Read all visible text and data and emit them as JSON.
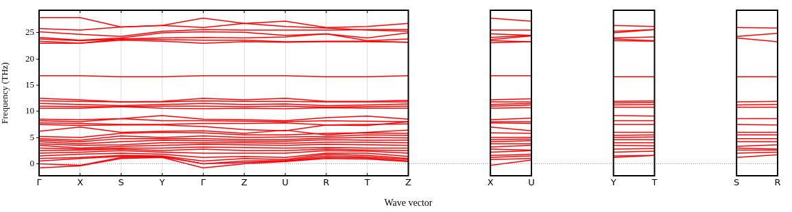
{
  "chart_data": {
    "type": "line",
    "ylabel": "Frequency (THz)",
    "xlabel": "Wave vector",
    "color": "#ff0000",
    "marker": "none",
    "grid": "x",
    "categories": [
      "Γ",
      "X",
      "S",
      "Y",
      "Γ",
      "Z",
      "U",
      "R",
      "T",
      "Z",
      null,
      "X",
      "U",
      null,
      "Y",
      "T",
      null,
      "S",
      "R"
    ],
    "ylim": [
      -2.3,
      29.3
    ],
    "yticks": [
      0,
      5,
      10,
      15,
      20,
      25
    ],
    "ref_lines": [
      {
        "axis": "y",
        "value": 0,
        "color": "#7777ff",
        "line_style": "dotted"
      }
    ],
    "series": [
      {
        "values": [
          27.9,
          27.9,
          26.1,
          26.4,
          27.8,
          26.8,
          27.2,
          26.0,
          26.2,
          26.8,
          null,
          null,
          null,
          null,
          null,
          null,
          null,
          null,
          null
        ]
      },
      {
        "values": [
          25.8,
          25.5,
          26.1,
          26.4,
          26.0,
          26.8,
          26.2,
          25.9,
          25.5,
          25.3,
          null,
          null,
          null,
          null,
          null,
          null,
          null,
          null,
          null
        ]
      },
      {
        "values": [
          25.2,
          24.7,
          24.3,
          25.3,
          25.6,
          25.5,
          25.5,
          25.5,
          25.6,
          25.6,
          null,
          null,
          null,
          null,
          null,
          null,
          null,
          null,
          null
        ]
      },
      {
        "values": [
          24.1,
          23.6,
          24.0,
          25.0,
          25.2,
          25.1,
          24.5,
          24.8,
          24.0,
          25.0,
          null,
          null,
          null,
          null,
          null,
          null,
          null,
          null,
          null
        ]
      },
      {
        "values": [
          23.8,
          23.5,
          23.8,
          24.0,
          24.1,
          24.0,
          24.2,
          24.8,
          23.5,
          23.8,
          null,
          null,
          null,
          null,
          null,
          null,
          null,
          null,
          null
        ]
      },
      {
        "values": [
          23.4,
          23.0,
          23.8,
          23.7,
          23.6,
          23.6,
          23.3,
          23.4,
          23.4,
          23.2,
          null,
          null,
          null,
          null,
          null,
          null,
          null,
          null,
          null
        ]
      },
      {
        "values": [
          23.0,
          23.0,
          23.6,
          23.4,
          23.0,
          23.3,
          23.2,
          23.3,
          23.3,
          23.2,
          null,
          null,
          null,
          null,
          null,
          null,
          null,
          null,
          null
        ]
      },
      {
        "values": [
          16.8,
          16.8,
          16.6,
          16.6,
          16.8,
          16.8,
          16.8,
          16.6,
          16.6,
          16.8,
          null,
          null,
          null,
          null,
          null,
          null,
          null,
          null,
          null
        ]
      },
      {
        "values": [
          12.5,
          12.2,
          11.8,
          11.9,
          12.5,
          12.2,
          12.5,
          11.9,
          11.9,
          12.1,
          null,
          null,
          null,
          null,
          null,
          null,
          null,
          null,
          null
        ]
      },
      {
        "values": [
          12.0,
          11.9,
          11.8,
          11.8,
          12.0,
          11.9,
          11.9,
          11.8,
          11.8,
          11.8,
          null,
          null,
          null,
          null,
          null,
          null,
          null,
          null,
          null
        ]
      },
      {
        "values": [
          11.5,
          11.3,
          11.1,
          11.3,
          11.5,
          11.3,
          11.4,
          11.1,
          11.2,
          11.4,
          null,
          null,
          null,
          null,
          null,
          null,
          null,
          null,
          null
        ]
      },
      {
        "values": [
          11.0,
          10.9,
          10.9,
          11.0,
          11.0,
          10.9,
          11.0,
          10.8,
          10.9,
          11.0,
          null,
          null,
          null,
          null,
          null,
          null,
          null,
          null,
          null
        ]
      },
      {
        "values": [
          10.6,
          10.6,
          10.9,
          10.6,
          10.5,
          10.6,
          10.5,
          10.7,
          10.6,
          10.6,
          null,
          null,
          null,
          null,
          null,
          null,
          null,
          null,
          null
        ]
      },
      {
        "values": [
          8.5,
          8.4,
          8.6,
          9.2,
          8.5,
          8.4,
          8.2,
          8.8,
          9.1,
          8.5,
          null,
          null,
          null,
          null,
          null,
          null,
          null,
          null,
          null
        ]
      },
      {
        "values": [
          8.2,
          8.0,
          8.6,
          8.2,
          8.2,
          8.1,
          8.0,
          8.2,
          8.1,
          8.0,
          null,
          null,
          null,
          null,
          null,
          null,
          null,
          null,
          null
        ]
      },
      {
        "values": [
          7.8,
          7.7,
          7.5,
          7.5,
          7.7,
          7.7,
          7.8,
          7.4,
          7.5,
          7.6,
          null,
          null,
          null,
          null,
          null,
          null,
          null,
          null,
          null
        ]
      },
      {
        "values": [
          7.5,
          7.3,
          7.4,
          7.4,
          7.1,
          6.5,
          6.3,
          7.4,
          7.3,
          8.0,
          null,
          null,
          null,
          null,
          null,
          null,
          null,
          null,
          null
        ]
      },
      {
        "values": [
          6.2,
          7.0,
          6.0,
          6.2,
          6.3,
          5.8,
          6.4,
          5.5,
          6.0,
          6.4,
          null,
          null,
          null,
          null,
          null,
          null,
          null,
          null,
          null
        ]
      },
      {
        "values": [
          5.2,
          5.0,
          5.8,
          6.0,
          5.9,
          5.5,
          5.5,
          5.8,
          5.9,
          5.8,
          null,
          null,
          null,
          null,
          null,
          null,
          null,
          null,
          null
        ]
      },
      {
        "values": [
          4.8,
          4.5,
          5.3,
          5.0,
          5.3,
          5.0,
          5.1,
          5.2,
          5.5,
          5.4,
          null,
          null,
          null,
          null,
          null,
          null,
          null,
          null,
          null
        ]
      },
      {
        "values": [
          4.5,
          4.2,
          4.8,
          4.8,
          4.8,
          4.6,
          4.6,
          4.9,
          5.0,
          4.9,
          null,
          null,
          null,
          null,
          null,
          null,
          null,
          null,
          null
        ]
      },
      {
        "values": [
          4.2,
          3.8,
          4.2,
          4.5,
          4.4,
          4.3,
          4.3,
          4.6,
          4.5,
          4.5,
          null,
          null,
          null,
          null,
          null,
          null,
          null,
          null,
          null
        ]
      },
      {
        "values": [
          3.8,
          3.5,
          3.6,
          4.0,
          4.0,
          4.0,
          3.9,
          4.1,
          4.1,
          4.0,
          null,
          null,
          null,
          null,
          null,
          null,
          null,
          null,
          null
        ]
      },
      {
        "values": [
          3.5,
          3.0,
          3.3,
          3.5,
          3.7,
          3.6,
          3.5,
          3.7,
          3.6,
          3.5,
          null,
          null,
          null,
          null,
          null,
          null,
          null,
          null,
          null
        ]
      },
      {
        "values": [
          3.0,
          2.8,
          3.0,
          3.0,
          3.2,
          3.1,
          3.0,
          3.1,
          3.0,
          3.0,
          null,
          null,
          null,
          null,
          null,
          null,
          null,
          null,
          null
        ]
      },
      {
        "values": [
          2.5,
          2.6,
          2.8,
          2.5,
          2.8,
          2.5,
          2.5,
          2.8,
          2.6,
          2.5,
          null,
          null,
          null,
          null,
          null,
          null,
          null,
          null,
          null
        ]
      },
      {
        "values": [
          2.0,
          2.2,
          2.5,
          2.2,
          2.0,
          2.0,
          2.0,
          2.5,
          2.4,
          2.0,
          null,
          null,
          null,
          null,
          null,
          null,
          null,
          null,
          null
        ]
      },
      {
        "values": [
          1.5,
          1.8,
          2.0,
          1.8,
          1.2,
          1.4,
          1.2,
          2.0,
          2.0,
          1.4,
          null,
          null,
          null,
          null,
          null,
          null,
          null,
          null,
          null
        ]
      },
      {
        "values": [
          1.0,
          1.2,
          1.6,
          1.5,
          0.5,
          1.0,
          0.8,
          1.8,
          1.6,
          1.0,
          null,
          null,
          null,
          null,
          null,
          null,
          null,
          null,
          null
        ]
      },
      {
        "values": [
          0.5,
          1.0,
          1.4,
          1.4,
          0,
          0.5,
          0.6,
          1.5,
          1.3,
          0.8,
          null,
          null,
          null,
          null,
          null,
          null,
          null,
          null,
          null
        ]
      },
      {
        "values": [
          0,
          -0.3,
          1.2,
          1.3,
          0,
          0.2,
          0.5,
          1.2,
          1.1,
          0.5,
          null,
          null,
          null,
          null,
          null,
          null,
          null,
          null,
          null
        ]
      },
      {
        "values": [
          -0.8,
          -0.4,
          1.0,
          1.2,
          -0.8,
          0,
          0.4,
          1.0,
          0.9,
          0.4,
          null,
          null,
          null,
          null,
          null,
          null,
          null,
          null,
          null
        ]
      },
      {
        "values": [
          null,
          null,
          null,
          null,
          null,
          null,
          null,
          null,
          null,
          null,
          null,
          27.8,
          27.2,
          null,
          null,
          null,
          null,
          null,
          null
        ]
      },
      {
        "values": [
          null,
          null,
          null,
          null,
          null,
          null,
          null,
          null,
          null,
          null,
          null,
          25.5,
          25.5,
          null,
          null,
          null,
          null,
          null,
          null
        ]
      },
      {
        "values": [
          null,
          null,
          null,
          null,
          null,
          null,
          null,
          null,
          null,
          null,
          null,
          24.8,
          24.5,
          null,
          null,
          null,
          null,
          null,
          null
        ]
      },
      {
        "values": [
          null,
          null,
          null,
          null,
          null,
          null,
          null,
          null,
          null,
          null,
          null,
          24.1,
          24.5,
          null,
          null,
          null,
          null,
          null,
          null
        ]
      },
      {
        "values": [
          null,
          null,
          null,
          null,
          null,
          null,
          null,
          null,
          null,
          null,
          null,
          23.7,
          24.4,
          null,
          null,
          null,
          null,
          null,
          null
        ]
      },
      {
        "values": [
          null,
          null,
          null,
          null,
          null,
          null,
          null,
          null,
          null,
          null,
          null,
          23.5,
          23.3,
          null,
          null,
          null,
          null,
          null,
          null
        ]
      },
      {
        "values": [
          null,
          null,
          null,
          null,
          null,
          null,
          null,
          null,
          null,
          null,
          null,
          23.1,
          23.3,
          null,
          null,
          null,
          null,
          null,
          null
        ]
      },
      {
        "values": [
          null,
          null,
          null,
          null,
          null,
          null,
          null,
          null,
          null,
          null,
          null,
          16.8,
          16.8,
          null,
          null,
          null,
          null,
          null,
          null
        ]
      },
      {
        "values": [
          null,
          null,
          null,
          null,
          null,
          null,
          null,
          null,
          null,
          null,
          null,
          12.2,
          12.4,
          null,
          null,
          null,
          null,
          null,
          null
        ]
      },
      {
        "values": [
          null,
          null,
          null,
          null,
          null,
          null,
          null,
          null,
          null,
          null,
          null,
          11.8,
          11.8,
          null,
          null,
          null,
          null,
          null,
          null
        ]
      },
      {
        "values": [
          null,
          null,
          null,
          null,
          null,
          null,
          null,
          null,
          null,
          null,
          null,
          11.3,
          11.5,
          null,
          null,
          null,
          null,
          null,
          null
        ]
      },
      {
        "values": [
          null,
          null,
          null,
          null,
          null,
          null,
          null,
          null,
          null,
          null,
          null,
          11.0,
          11.2,
          null,
          null,
          null,
          null,
          null,
          null
        ]
      },
      {
        "values": [
          null,
          null,
          null,
          null,
          null,
          null,
          null,
          null,
          null,
          null,
          null,
          10.6,
          10.7,
          null,
          null,
          null,
          null,
          null,
          null
        ]
      },
      {
        "values": [
          null,
          null,
          null,
          null,
          null,
          null,
          null,
          null,
          null,
          null,
          null,
          8.4,
          8.7,
          null,
          null,
          null,
          null,
          null,
          null
        ]
      },
      {
        "values": [
          null,
          null,
          null,
          null,
          null,
          null,
          null,
          null,
          null,
          null,
          null,
          8.0,
          8.0,
          null,
          null,
          null,
          null,
          null,
          null
        ]
      },
      {
        "values": [
          null,
          null,
          null,
          null,
          null,
          null,
          null,
          null,
          null,
          null,
          null,
          7.8,
          7.7,
          null,
          null,
          null,
          null,
          null,
          null
        ]
      },
      {
        "values": [
          null,
          null,
          null,
          null,
          null,
          null,
          null,
          null,
          null,
          null,
          null,
          7.0,
          6.3,
          null,
          null,
          null,
          null,
          null,
          null
        ]
      },
      {
        "values": [
          null,
          null,
          null,
          null,
          null,
          null,
          null,
          null,
          null,
          null,
          null,
          5.9,
          5.8,
          null,
          null,
          null,
          null,
          null,
          null
        ]
      },
      {
        "values": [
          null,
          null,
          null,
          null,
          null,
          null,
          null,
          null,
          null,
          null,
          null,
          5.0,
          5.0,
          null,
          null,
          null,
          null,
          null,
          null
        ]
      },
      {
        "values": [
          null,
          null,
          null,
          null,
          null,
          null,
          null,
          null,
          null,
          null,
          null,
          4.6,
          4.7,
          null,
          null,
          null,
          null,
          null,
          null
        ]
      },
      {
        "values": [
          null,
          null,
          null,
          null,
          null,
          null,
          null,
          null,
          null,
          null,
          null,
          4.2,
          4.4,
          null,
          null,
          null,
          null,
          null,
          null
        ]
      },
      {
        "values": [
          null,
          null,
          null,
          null,
          null,
          null,
          null,
          null,
          null,
          null,
          null,
          3.8,
          3.8,
          null,
          null,
          null,
          null,
          null,
          null
        ]
      },
      {
        "values": [
          null,
          null,
          null,
          null,
          null,
          null,
          null,
          null,
          null,
          null,
          null,
          3.2,
          3.5,
          null,
          null,
          null,
          null,
          null,
          null
        ]
      },
      {
        "values": [
          null,
          null,
          null,
          null,
          null,
          null,
          null,
          null,
          null,
          null,
          null,
          2.8,
          2.6,
          null,
          null,
          null,
          null,
          null,
          null
        ]
      },
      {
        "values": [
          null,
          null,
          null,
          null,
          null,
          null,
          null,
          null,
          null,
          null,
          null,
          2.2,
          2.5,
          null,
          null,
          null,
          null,
          null,
          null
        ]
      },
      {
        "values": [
          null,
          null,
          null,
          null,
          null,
          null,
          null,
          null,
          null,
          null,
          null,
          1.6,
          1.8,
          null,
          null,
          null,
          null,
          null,
          null
        ]
      },
      {
        "values": [
          null,
          null,
          null,
          null,
          null,
          null,
          null,
          null,
          null,
          null,
          null,
          1.2,
          1.5,
          null,
          null,
          null,
          null,
          null,
          null
        ]
      },
      {
        "values": [
          null,
          null,
          null,
          null,
          null,
          null,
          null,
          null,
          null,
          null,
          null,
          0.8,
          1.0,
          null,
          null,
          null,
          null,
          null,
          null
        ]
      },
      {
        "values": [
          null,
          null,
          null,
          null,
          null,
          null,
          null,
          null,
          null,
          null,
          null,
          -0.3,
          0.7,
          null,
          null,
          null,
          null,
          null,
          null
        ]
      },
      {
        "values": [
          null,
          null,
          null,
          null,
          null,
          null,
          null,
          null,
          null,
          null,
          null,
          null,
          null,
          null,
          26.4,
          26.2,
          null,
          null,
          null
        ]
      },
      {
        "values": [
          null,
          null,
          null,
          null,
          null,
          null,
          null,
          null,
          null,
          null,
          null,
          null,
          null,
          null,
          25.3,
          25.6,
          null,
          null,
          null
        ]
      },
      {
        "values": [
          null,
          null,
          null,
          null,
          null,
          null,
          null,
          null,
          null,
          null,
          null,
          null,
          null,
          null,
          25.0,
          25.6,
          null,
          null,
          null
        ]
      },
      {
        "values": [
          null,
          null,
          null,
          null,
          null,
          null,
          null,
          null,
          null,
          null,
          null,
          null,
          null,
          null,
          24.0,
          24.2,
          null,
          null,
          null
        ]
      },
      {
        "values": [
          null,
          null,
          null,
          null,
          null,
          null,
          null,
          null,
          null,
          null,
          null,
          null,
          null,
          null,
          23.8,
          23.5,
          null,
          null,
          null
        ]
      },
      {
        "values": [
          null,
          null,
          null,
          null,
          null,
          null,
          null,
          null,
          null,
          null,
          null,
          null,
          null,
          null,
          23.5,
          23.4,
          null,
          null,
          null
        ]
      },
      {
        "values": [
          null,
          null,
          null,
          null,
          null,
          null,
          null,
          null,
          null,
          null,
          null,
          null,
          null,
          null,
          16.6,
          16.6,
          null,
          null,
          null
        ]
      },
      {
        "values": [
          null,
          null,
          null,
          null,
          null,
          null,
          null,
          null,
          null,
          null,
          null,
          null,
          null,
          null,
          11.9,
          12.0,
          null,
          null,
          null
        ]
      },
      {
        "values": [
          null,
          null,
          null,
          null,
          null,
          null,
          null,
          null,
          null,
          null,
          null,
          null,
          null,
          null,
          11.6,
          11.7,
          null,
          null,
          null
        ]
      },
      {
        "values": [
          null,
          null,
          null,
          null,
          null,
          null,
          null,
          null,
          null,
          null,
          null,
          null,
          null,
          null,
          11.2,
          11.3,
          null,
          null,
          null
        ]
      },
      {
        "values": [
          null,
          null,
          null,
          null,
          null,
          null,
          null,
          null,
          null,
          null,
          null,
          null,
          null,
          null,
          10.8,
          10.8,
          null,
          null,
          null
        ]
      },
      {
        "values": [
          null,
          null,
          null,
          null,
          null,
          null,
          null,
          null,
          null,
          null,
          null,
          null,
          null,
          null,
          9.2,
          9.1,
          null,
          null,
          null
        ]
      },
      {
        "values": [
          null,
          null,
          null,
          null,
          null,
          null,
          null,
          null,
          null,
          null,
          null,
          null,
          null,
          null,
          8.2,
          8.2,
          null,
          null,
          null
        ]
      },
      {
        "values": [
          null,
          null,
          null,
          null,
          null,
          null,
          null,
          null,
          null,
          null,
          null,
          null,
          null,
          null,
          7.5,
          7.5,
          null,
          null,
          null
        ]
      },
      {
        "values": [
          null,
          null,
          null,
          null,
          null,
          null,
          null,
          null,
          null,
          null,
          null,
          null,
          null,
          null,
          6.0,
          6.0,
          null,
          null,
          null
        ]
      },
      {
        "values": [
          null,
          null,
          null,
          null,
          null,
          null,
          null,
          null,
          null,
          null,
          null,
          null,
          null,
          null,
          5.4,
          5.5,
          null,
          null,
          null
        ]
      },
      {
        "values": [
          null,
          null,
          null,
          null,
          null,
          null,
          null,
          null,
          null,
          null,
          null,
          null,
          null,
          null,
          5.0,
          5.1,
          null,
          null,
          null
        ]
      },
      {
        "values": [
          null,
          null,
          null,
          null,
          null,
          null,
          null,
          null,
          null,
          null,
          null,
          null,
          null,
          null,
          4.6,
          4.6,
          null,
          null,
          null
        ]
      },
      {
        "values": [
          null,
          null,
          null,
          null,
          null,
          null,
          null,
          null,
          null,
          null,
          null,
          null,
          null,
          null,
          4.0,
          4.0,
          null,
          null,
          null
        ]
      },
      {
        "values": [
          null,
          null,
          null,
          null,
          null,
          null,
          null,
          null,
          null,
          null,
          null,
          null,
          null,
          null,
          3.5,
          3.4,
          null,
          null,
          null
        ]
      },
      {
        "values": [
          null,
          null,
          null,
          null,
          null,
          null,
          null,
          null,
          null,
          null,
          null,
          null,
          null,
          null,
          2.8,
          2.9,
          null,
          null,
          null
        ]
      },
      {
        "values": [
          null,
          null,
          null,
          null,
          null,
          null,
          null,
          null,
          null,
          null,
          null,
          null,
          null,
          null,
          2.2,
          2.4,
          null,
          null,
          null
        ]
      },
      {
        "values": [
          null,
          null,
          null,
          null,
          null,
          null,
          null,
          null,
          null,
          null,
          null,
          null,
          null,
          null,
          1.5,
          1.6,
          null,
          null,
          null
        ]
      },
      {
        "values": [
          null,
          null,
          null,
          null,
          null,
          null,
          null,
          null,
          null,
          null,
          null,
          null,
          null,
          null,
          1.2,
          1.6,
          null,
          null,
          null
        ]
      },
      {
        "values": [
          null,
          null,
          null,
          null,
          null,
          null,
          null,
          null,
          null,
          null,
          null,
          null,
          null,
          null,
          null,
          null,
          null,
          26.0,
          25.9
        ]
      },
      {
        "values": [
          null,
          null,
          null,
          null,
          null,
          null,
          null,
          null,
          null,
          null,
          null,
          null,
          null,
          null,
          null,
          null,
          null,
          24.3,
          24.9
        ]
      },
      {
        "values": [
          null,
          null,
          null,
          null,
          null,
          null,
          null,
          null,
          null,
          null,
          null,
          null,
          null,
          null,
          null,
          null,
          null,
          24.0,
          23.3
        ]
      },
      {
        "values": [
          null,
          null,
          null,
          null,
          null,
          null,
          null,
          null,
          null,
          null,
          null,
          null,
          null,
          null,
          null,
          null,
          null,
          16.6,
          16.6
        ]
      },
      {
        "values": [
          null,
          null,
          null,
          null,
          null,
          null,
          null,
          null,
          null,
          null,
          null,
          null,
          null,
          null,
          null,
          null,
          null,
          11.8,
          11.9
        ]
      },
      {
        "values": [
          null,
          null,
          null,
          null,
          null,
          null,
          null,
          null,
          null,
          null,
          null,
          null,
          null,
          null,
          null,
          null,
          null,
          11.2,
          11.3
        ]
      },
      {
        "values": [
          null,
          null,
          null,
          null,
          null,
          null,
          null,
          null,
          null,
          null,
          null,
          null,
          null,
          null,
          null,
          null,
          null,
          10.8,
          10.8
        ]
      },
      {
        "values": [
          null,
          null,
          null,
          null,
          null,
          null,
          null,
          null,
          null,
          null,
          null,
          null,
          null,
          null,
          null,
          null,
          null,
          8.6,
          8.6
        ]
      },
      {
        "values": [
          null,
          null,
          null,
          null,
          null,
          null,
          null,
          null,
          null,
          null,
          null,
          null,
          null,
          null,
          null,
          null,
          null,
          7.5,
          7.4
        ]
      },
      {
        "values": [
          null,
          null,
          null,
          null,
          null,
          null,
          null,
          null,
          null,
          null,
          null,
          null,
          null,
          null,
          null,
          null,
          null,
          6.0,
          6.0
        ]
      },
      {
        "values": [
          null,
          null,
          null,
          null,
          null,
          null,
          null,
          null,
          null,
          null,
          null,
          null,
          null,
          null,
          null,
          null,
          null,
          5.5,
          5.5
        ]
      },
      {
        "values": [
          null,
          null,
          null,
          null,
          null,
          null,
          null,
          null,
          null,
          null,
          null,
          null,
          null,
          null,
          null,
          null,
          null,
          4.8,
          4.8
        ]
      },
      {
        "values": [
          null,
          null,
          null,
          null,
          null,
          null,
          null,
          null,
          null,
          null,
          null,
          null,
          null,
          null,
          null,
          null,
          null,
          4.2,
          4.2
        ]
      },
      {
        "values": [
          null,
          null,
          null,
          null,
          null,
          null,
          null,
          null,
          null,
          null,
          null,
          null,
          null,
          null,
          null,
          null,
          null,
          3.3,
          3.6
        ]
      },
      {
        "values": [
          null,
          null,
          null,
          null,
          null,
          null,
          null,
          null,
          null,
          null,
          null,
          null,
          null,
          null,
          null,
          null,
          null,
          3.0,
          2.8
        ]
      },
      {
        "values": [
          null,
          null,
          null,
          null,
          null,
          null,
          null,
          null,
          null,
          null,
          null,
          null,
          null,
          null,
          null,
          null,
          null,
          2.6,
          2.6
        ]
      },
      {
        "values": [
          null,
          null,
          null,
          null,
          null,
          null,
          null,
          null,
          null,
          null,
          null,
          null,
          null,
          null,
          null,
          null,
          null,
          2.0,
          2.2
        ]
      },
      {
        "values": [
          null,
          null,
          null,
          null,
          null,
          null,
          null,
          null,
          null,
          null,
          null,
          null,
          null,
          null,
          null,
          null,
          null,
          1.2,
          1.7
        ]
      }
    ]
  }
}
